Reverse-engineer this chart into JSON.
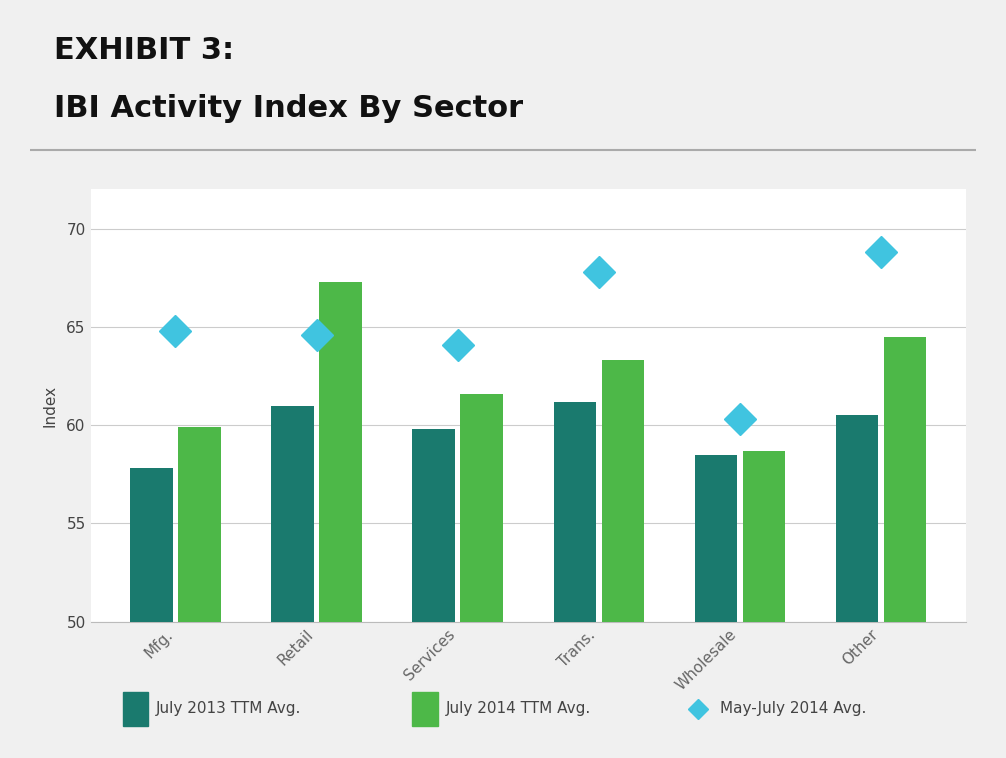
{
  "title_line1": "EXHIBIT 3:",
  "title_line2": "IBI Activity Index By Sector",
  "ylabel": "Index",
  "categories": [
    "Mfg.",
    "Retail",
    "Services",
    "Trans.",
    "Wholesale",
    "Other"
  ],
  "series1_label": "July 2013 TTM Avg.",
  "series2_label": "July 2014 TTM Avg.",
  "series3_label": "May-July 2014 Avg.",
  "series1_values": [
    57.8,
    61.0,
    59.8,
    61.2,
    58.5,
    60.5
  ],
  "series2_values": [
    59.9,
    67.3,
    61.6,
    63.3,
    58.7,
    64.5
  ],
  "series3_values": [
    64.8,
    64.6,
    64.1,
    67.8,
    60.3,
    68.8
  ],
  "series1_color": "#1a7a6e",
  "series2_color": "#4db848",
  "series3_color": "#40c4e0",
  "ylim_min": 50,
  "ylim_max": 72,
  "yticks": [
    50,
    55,
    60,
    65,
    70
  ],
  "bar_width": 0.3,
  "title_bg_color": "#c8c8c8",
  "plot_bg_color": "#ffffff",
  "fig_bg_color": "#f0f0f0",
  "grid_color": "#cccccc",
  "title_fontsize": 22,
  "axis_label_fontsize": 11,
  "tick_fontsize": 11,
  "legend_fontsize": 11
}
